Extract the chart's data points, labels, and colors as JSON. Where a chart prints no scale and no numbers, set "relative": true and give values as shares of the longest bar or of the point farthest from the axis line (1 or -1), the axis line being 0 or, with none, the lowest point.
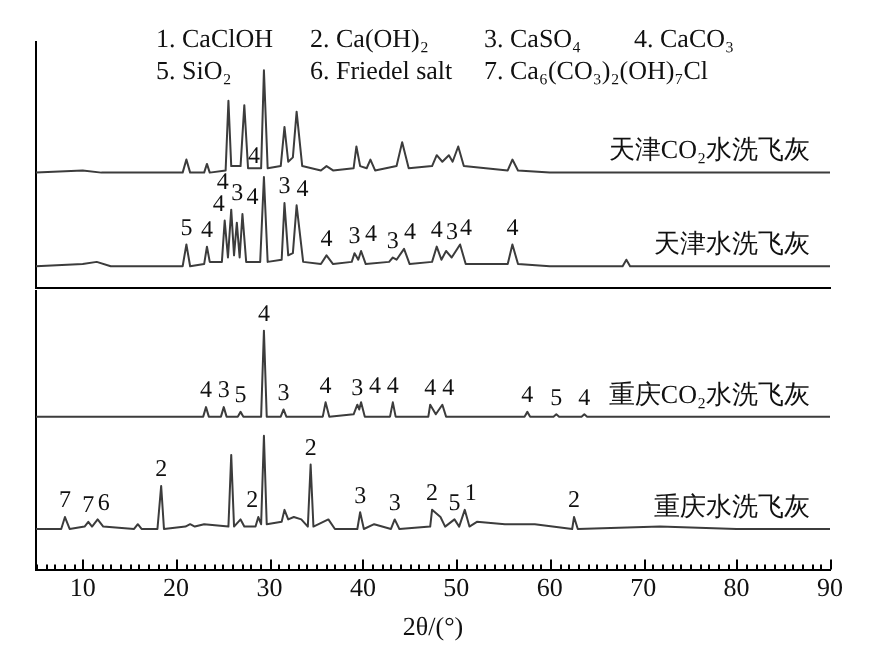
{
  "chart_data": [
    {
      "type": "line",
      "relative": true,
      "xlim": [
        5,
        90
      ],
      "tick_labels": false,
      "marker": "none",
      "annotations": [
        "1. CaClOH",
        "2. Ca(OH)₂",
        "3. CaSO₄",
        "4. CaCO₃",
        "5. SiO₂",
        "6. Friedel salt",
        "7. Ca₆(CO₃)₂(OH)₇Cl",
        {
          "text": "5",
          "x": 21.1,
          "y": 0.2
        },
        {
          "text": "4",
          "x": 23.3,
          "y": 0.19
        },
        {
          "text": "4",
          "x": 25.2,
          "y": 0.31
        },
        {
          "text": "3",
          "x": 25.9,
          "y": 0.36
        },
        {
          "text": "4",
          "x": 26.5,
          "y": 0.3
        },
        {
          "text": "4",
          "x": 27.1,
          "y": 0.34
        },
        {
          "text": "4",
          "x": 29.4,
          "y": 0.51
        },
        {
          "text": "3",
          "x": 31.6,
          "y": 0.39
        },
        {
          "text": "4",
          "x": 32.9,
          "y": 0.38
        },
        {
          "text": "4",
          "x": 36.1,
          "y": 0.15
        },
        {
          "text": "3",
          "x": 39.1,
          "y": 0.16
        },
        {
          "text": "4",
          "x": 39.8,
          "y": 0.17
        },
        {
          "text": "3",
          "x": 43.2,
          "y": 0.14
        },
        {
          "text": "4",
          "x": 44.4,
          "y": 0.18
        },
        {
          "text": "4",
          "x": 47.9,
          "y": 0.19
        },
        {
          "text": "3",
          "x": 48.9,
          "y": 0.17
        },
        {
          "text": "4",
          "x": 50.4,
          "y": 0.2
        },
        {
          "text": "4",
          "x": 56.0,
          "y": 0.2
        }
      ],
      "series": [
        {
          "name": "天津CO₂水洗飞灰",
          "color": "#3c3c3c",
          "x": [
            5,
            10,
            12,
            15,
            20.7,
            21.1,
            21.5,
            23.0,
            23.3,
            23.6,
            25.3,
            25.6,
            25.9,
            26.9,
            27.3,
            27.7,
            29.1,
            29.4,
            29.8,
            31.2,
            31.6,
            32.0,
            32.5,
            32.9,
            33.5,
            35.5,
            36.1,
            36.8,
            39.0,
            39.3,
            39.7,
            40.4,
            40.8,
            41.3,
            43.6,
            44.2,
            44.9,
            47.4,
            47.9,
            48.5,
            49.2,
            49.6,
            50.2,
            50.8,
            55.5,
            56.0,
            56.6,
            60,
            65,
            70,
            75,
            80,
            85,
            90
          ],
          "values": [
            0.53,
            0.54,
            0.53,
            0.53,
            0.53,
            0.59,
            0.53,
            0.53,
            0.57,
            0.53,
            0.54,
            0.86,
            0.56,
            0.56,
            0.84,
            0.55,
            0.55,
            1.0,
            0.55,
            0.56,
            0.74,
            0.58,
            0.6,
            0.81,
            0.56,
            0.54,
            0.56,
            0.54,
            0.55,
            0.65,
            0.56,
            0.55,
            0.59,
            0.54,
            0.56,
            0.67,
            0.55,
            0.56,
            0.61,
            0.58,
            0.61,
            0.58,
            0.65,
            0.56,
            0.54,
            0.59,
            0.54,
            0.53,
            0.53,
            0.53,
            0.53,
            0.53,
            0.53,
            0.53
          ]
        },
        {
          "name": "天津水洗飞灰",
          "color": "#3c3c3c",
          "x": [
            5,
            10,
            11.5,
            13,
            20.7,
            21.1,
            21.5,
            23.0,
            23.3,
            23.6,
            24.0,
            24.9,
            25.2,
            25.55,
            25.9,
            26.2,
            26.5,
            26.8,
            27.1,
            27.5,
            29.0,
            29.4,
            29.8,
            31.3,
            31.6,
            32.0,
            32.5,
            32.9,
            33.6,
            35.5,
            36.1,
            36.8,
            38.8,
            39.1,
            39.5,
            39.8,
            40.3,
            42.8,
            43.2,
            43.6,
            44.4,
            45.0,
            47.4,
            47.9,
            48.4,
            48.9,
            49.5,
            50.4,
            51.0,
            55.5,
            56.0,
            56.6,
            60,
            65,
            67.8,
            68.2,
            68.6,
            75,
            80,
            90
          ],
          "values": [
            0.1,
            0.11,
            0.12,
            0.1,
            0.1,
            0.2,
            0.1,
            0.11,
            0.19,
            0.12,
            0.12,
            0.12,
            0.31,
            0.14,
            0.36,
            0.15,
            0.3,
            0.14,
            0.34,
            0.12,
            0.12,
            0.51,
            0.12,
            0.13,
            0.39,
            0.15,
            0.16,
            0.38,
            0.12,
            0.11,
            0.15,
            0.11,
            0.12,
            0.16,
            0.13,
            0.17,
            0.11,
            0.12,
            0.14,
            0.13,
            0.18,
            0.11,
            0.12,
            0.19,
            0.13,
            0.17,
            0.14,
            0.2,
            0.11,
            0.11,
            0.2,
            0.11,
            0.1,
            0.1,
            0.1,
            0.13,
            0.1,
            0.1,
            0.1,
            0.1
          ]
        }
      ]
    },
    {
      "type": "line",
      "relative": true,
      "xlim": [
        5,
        90
      ],
      "xlabel": "2θ/(°)",
      "tick_labels": "x",
      "marker": "none",
      "xticks": [
        {
          "value": 5,
          "label": null
        },
        {
          "value": 6,
          "label": null
        },
        {
          "value": 7,
          "label": null
        },
        {
          "value": 8,
          "label": null
        },
        {
          "value": 9,
          "label": null
        },
        10,
        {
          "value": 11,
          "label": null
        },
        {
          "value": 12,
          "label": null
        },
        {
          "value": 13,
          "label": null
        },
        {
          "value": 14,
          "label": null
        },
        {
          "value": 15,
          "label": null
        },
        {
          "value": 16,
          "label": null
        },
        {
          "value": 17,
          "label": null
        },
        {
          "value": 18,
          "label": null
        },
        {
          "value": 19,
          "label": null
        },
        20,
        {
          "value": 21,
          "label": null
        },
        {
          "value": 22,
          "label": null
        },
        {
          "value": 23,
          "label": null
        },
        {
          "value": 24,
          "label": null
        },
        {
          "value": 25,
          "label": null
        },
        {
          "value": 26,
          "label": null
        },
        {
          "value": 27,
          "label": null
        },
        {
          "value": 28,
          "label": null
        },
        {
          "value": 29,
          "label": null
        },
        30,
        {
          "value": 31,
          "label": null
        },
        {
          "value": 32,
          "label": null
        },
        {
          "value": 33,
          "label": null
        },
        {
          "value": 34,
          "label": null
        },
        {
          "value": 35,
          "label": null
        },
        {
          "value": 36,
          "label": null
        },
        {
          "value": 37,
          "label": null
        },
        {
          "value": 38,
          "label": null
        },
        {
          "value": 39,
          "label": null
        },
        40,
        {
          "value": 41,
          "label": null
        },
        {
          "value": 42,
          "label": null
        },
        {
          "value": 43,
          "label": null
        },
        {
          "value": 44,
          "label": null
        },
        {
          "value": 45,
          "label": null
        },
        {
          "value": 46,
          "label": null
        },
        {
          "value": 47,
          "label": null
        },
        {
          "value": 48,
          "label": null
        },
        {
          "value": 49,
          "label": null
        },
        50,
        {
          "value": 51,
          "label": null
        },
        {
          "value": 52,
          "label": null
        },
        {
          "value": 53,
          "label": null
        },
        {
          "value": 54,
          "label": null
        },
        {
          "value": 55,
          "label": null
        },
        {
          "value": 56,
          "label": null
        },
        {
          "value": 57,
          "label": null
        },
        {
          "value": 58,
          "label": null
        },
        {
          "value": 59,
          "label": null
        },
        60,
        {
          "value": 61,
          "label": null
        },
        {
          "value": 62,
          "label": null
        },
        {
          "value": 63,
          "label": null
        },
        {
          "value": 64,
          "label": null
        },
        {
          "value": 65,
          "label": null
        },
        {
          "value": 66,
          "label": null
        },
        {
          "value": 67,
          "label": null
        },
        {
          "value": 68,
          "label": null
        },
        {
          "value": 69,
          "label": null
        },
        70,
        {
          "value": 71,
          "label": null
        },
        {
          "value": 72,
          "label": null
        },
        {
          "value": 73,
          "label": null
        },
        {
          "value": 74,
          "label": null
        },
        {
          "value": 75,
          "label": null
        },
        {
          "value": 76,
          "label": null
        },
        {
          "value": 77,
          "label": null
        },
        {
          "value": 78,
          "label": null
        },
        {
          "value": 79,
          "label": null
        },
        80,
        {
          "value": 81,
          "label": null
        },
        {
          "value": 82,
          "label": null
        },
        {
          "value": 83,
          "label": null
        },
        {
          "value": 84,
          "label": null
        },
        {
          "value": 85,
          "label": null
        },
        {
          "value": 86,
          "label": null
        },
        {
          "value": 87,
          "label": null
        },
        {
          "value": 88,
          "label": null
        },
        {
          "value": 89,
          "label": null
        },
        90
      ],
      "annotations": [
        {
          "text": "4",
          "x": 29.4,
          "y": 1.0
        },
        {
          "text": "4",
          "x": 23.2,
          "y": 0.68
        },
        {
          "text": "3",
          "x": 25.1,
          "y": 0.68
        },
        {
          "text": "5",
          "x": 26.9,
          "y": 0.66
        },
        {
          "text": "3",
          "x": 31.5,
          "y": 0.67
        },
        {
          "text": "4",
          "x": 36.0,
          "y": 0.7
        },
        {
          "text": "3",
          "x": 39.4,
          "y": 0.69
        },
        {
          "text": "4",
          "x": 39.8,
          "y": 0.7
        },
        {
          "text": "4",
          "x": 43.2,
          "y": 0.7
        },
        {
          "text": "4",
          "x": 47.2,
          "y": 0.69
        },
        {
          "text": "4",
          "x": 48.5,
          "y": 0.69
        },
        {
          "text": "4",
          "x": 57.6,
          "y": 0.66
        },
        {
          "text": "5",
          "x": 60.7,
          "y": 0.65
        },
        {
          "text": "4",
          "x": 63.7,
          "y": 0.65
        },
        {
          "text": "7",
          "x": 8.1,
          "y": 0.22
        },
        {
          "text": "7",
          "x": 10.6,
          "y": 0.2
        },
        {
          "text": "6",
          "x": 11.6,
          "y": 0.21
        },
        {
          "text": "2",
          "x": 18.4,
          "y": 0.35
        },
        {
          "text": "2",
          "x": 28.8,
          "y": 0.22
        },
        {
          "text": "2",
          "x": 34.4,
          "y": 0.44
        },
        {
          "text": "3",
          "x": 39.7,
          "y": 0.24
        },
        {
          "text": "3",
          "x": 43.4,
          "y": 0.21
        },
        {
          "text": "2",
          "x": 47.4,
          "y": 0.25
        },
        {
          "text": "5",
          "x": 49.8,
          "y": 0.21
        },
        {
          "text": "1",
          "x": 50.9,
          "y": 0.25
        },
        {
          "text": "2",
          "x": 62.6,
          "y": 0.22
        }
      ],
      "series": [
        {
          "name": "重庆CO₂水洗飞灰",
          "color": "#3c3c3c",
          "x": [
            5,
            15,
            20,
            22.9,
            23.2,
            23.5,
            24.8,
            25.1,
            25.4,
            26.6,
            26.9,
            27.2,
            29.1,
            29.4,
            29.7,
            31.2,
            31.5,
            31.8,
            35.7,
            36.0,
            36.4,
            39.0,
            39.4,
            39.6,
            39.8,
            40.2,
            42.9,
            43.2,
            43.5,
            47.0,
            47.2,
            47.8,
            48.5,
            48.9,
            57.3,
            57.6,
            57.9,
            60.4,
            60.7,
            61.0,
            63.4,
            63.7,
            64.0,
            70,
            80,
            90
          ],
          "values": [
            0.64,
            0.64,
            0.64,
            0.64,
            0.68,
            0.64,
            0.64,
            0.68,
            0.64,
            0.64,
            0.66,
            0.64,
            0.64,
            1.0,
            0.64,
            0.64,
            0.67,
            0.64,
            0.64,
            0.7,
            0.64,
            0.65,
            0.69,
            0.67,
            0.7,
            0.64,
            0.64,
            0.7,
            0.64,
            0.64,
            0.69,
            0.65,
            0.69,
            0.64,
            0.64,
            0.66,
            0.64,
            0.64,
            0.65,
            0.64,
            0.64,
            0.65,
            0.64,
            0.64,
            0.64,
            0.64
          ]
        },
        {
          "name": "重庆水洗飞灰",
          "color": "#3c3c3c",
          "x": [
            5,
            7.7,
            8.1,
            8.6,
            10.2,
            10.6,
            11.0,
            11.6,
            12.2,
            15.5,
            15.9,
            16.3,
            18.0,
            18.4,
            18.7,
            21,
            21.5,
            22,
            23,
            25.6,
            25.9,
            26.2,
            26.9,
            27.3,
            28.5,
            28.8,
            29.1,
            29.4,
            29.7,
            31.3,
            31.6,
            32.0,
            32.6,
            33.4,
            34.1,
            34.4,
            34.7,
            36.3,
            37.0,
            39.4,
            39.7,
            40.1,
            41.2,
            43.0,
            43.4,
            43.9,
            47.2,
            47.4,
            48.3,
            48.8,
            49.8,
            50.3,
            50.9,
            51.4,
            52.2,
            55.2,
            58.4,
            62.4,
            62.6,
            63.0,
            71.8,
            80,
            90
          ],
          "values": [
            0.17,
            0.17,
            0.22,
            0.17,
            0.18,
            0.2,
            0.18,
            0.21,
            0.18,
            0.17,
            0.19,
            0.17,
            0.17,
            0.35,
            0.17,
            0.18,
            0.19,
            0.18,
            0.19,
            0.18,
            0.48,
            0.18,
            0.21,
            0.18,
            0.18,
            0.22,
            0.19,
            0.56,
            0.19,
            0.2,
            0.25,
            0.21,
            0.22,
            0.21,
            0.18,
            0.44,
            0.18,
            0.21,
            0.17,
            0.17,
            0.24,
            0.17,
            0.19,
            0.17,
            0.21,
            0.17,
            0.18,
            0.25,
            0.22,
            0.18,
            0.21,
            0.18,
            0.25,
            0.18,
            0.2,
            0.19,
            0.19,
            0.17,
            0.22,
            0.17,
            0.18,
            0.17,
            0.17
          ]
        }
      ]
    }
  ]
}
